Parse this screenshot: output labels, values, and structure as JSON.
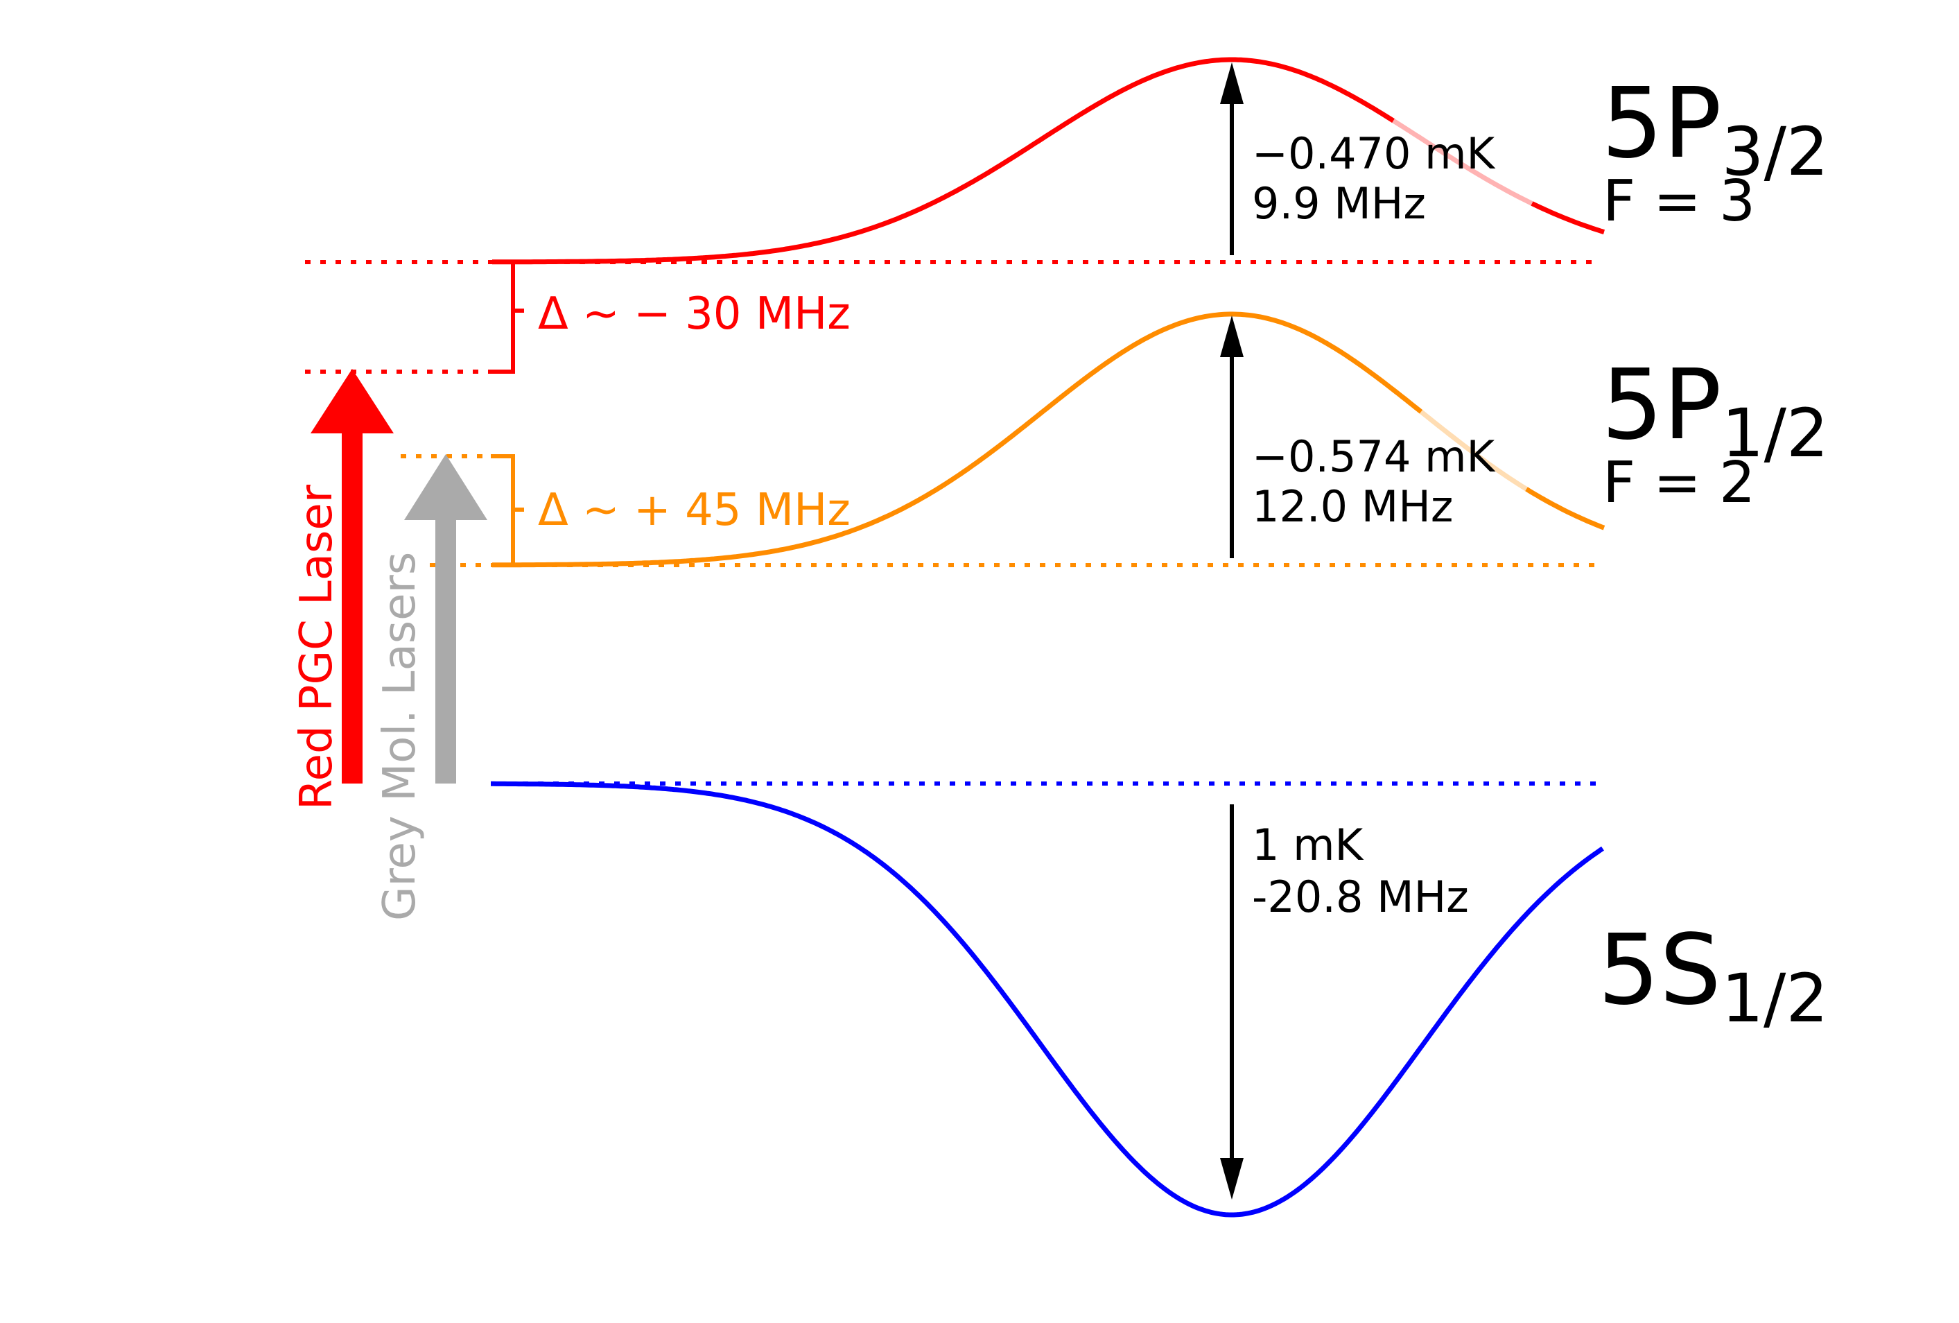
{
  "levels": {
    "p32": {
      "name": "5P",
      "sub": "3/2",
      "f_label": "F = 3",
      "depth_mk": "−0.470 mK",
      "shift_mhz": "9.9 MHz",
      "color": "#ff0000"
    },
    "p12": {
      "name": "5P",
      "sub": "1/2",
      "f_label": "F = 2",
      "depth_mk": "−0.574 mK",
      "shift_mhz": "12.0 MHz",
      "color": "#ff8c00"
    },
    "s12": {
      "name": "5S",
      "sub": "1/2",
      "depth_mk": "1 mK",
      "shift_mhz": "-20.8 MHz",
      "color": "#0000ff"
    }
  },
  "detunings": {
    "red": {
      "label": "Δ ~ − 30 MHz",
      "color": "#ff0000"
    },
    "grey": {
      "label": "Δ ~ + 45 MHz",
      "color": "#ff8c00"
    }
  },
  "lasers": {
    "red": {
      "label": "Red PGC Laser",
      "color": "#ff0000"
    },
    "grey": {
      "label": "Grey Mol. Lasers",
      "color": "#aaaaaa"
    }
  },
  "arrow_color": "#000000"
}
